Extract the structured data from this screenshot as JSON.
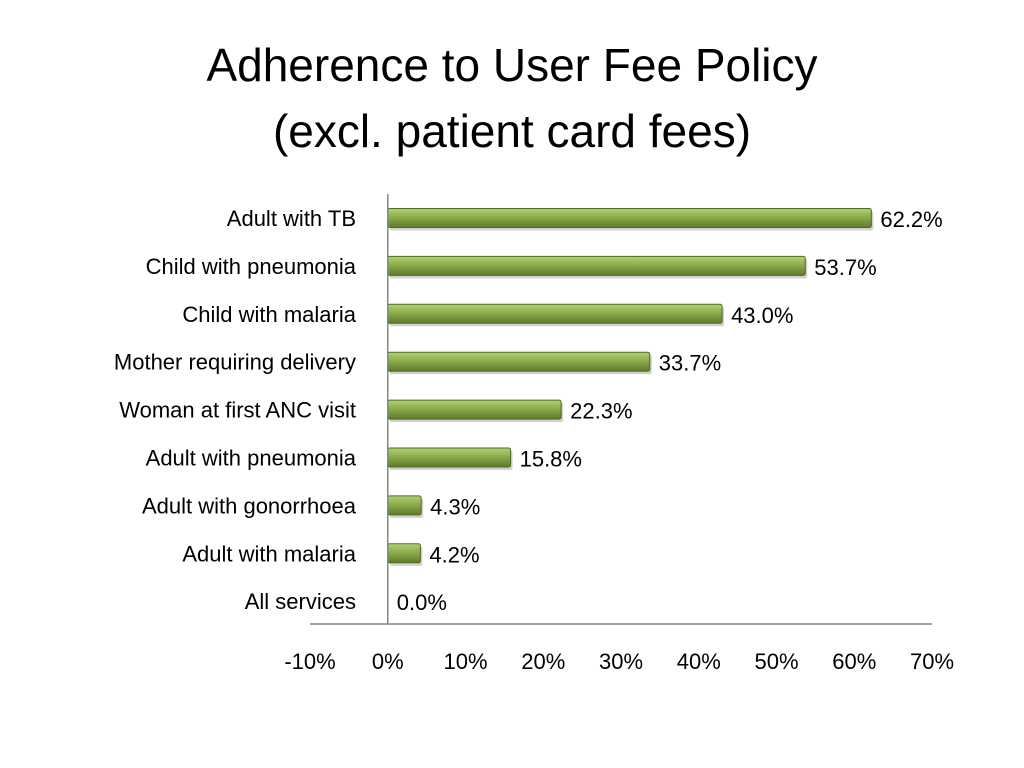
{
  "chart_data": {
    "type": "bar",
    "orientation": "horizontal",
    "title_line1": "Adherence to User Fee Policy",
    "title_line2": "(excl. patient card fees)",
    "categories": [
      "Adult with TB",
      "Child with pneumonia",
      "Child with malaria",
      "Mother requiring delivery",
      "Woman at first ANC visit",
      "Adult with pneumonia",
      "Adult with gonorrhoea",
      "Adult with malaria",
      "All services"
    ],
    "values": [
      62.2,
      53.7,
      43.0,
      33.7,
      22.3,
      15.8,
      4.3,
      4.2,
      0.0
    ],
    "value_labels": [
      "62.2%",
      "53.7%",
      "43.0%",
      "33.7%",
      "22.3%",
      "15.8%",
      "4.3%",
      "4.2%",
      "0.0%"
    ],
    "xlim": [
      -10,
      70
    ],
    "xticks": [
      -10,
      0,
      10,
      20,
      30,
      40,
      50,
      60,
      70
    ],
    "xtick_labels": [
      "-10%",
      "0%",
      "10%",
      "20%",
      "30%",
      "40%",
      "50%",
      "60%",
      "70%"
    ],
    "xlabel": "",
    "ylabel": "",
    "grid": false,
    "legend": "none",
    "colors": {
      "bar_fill": "#8cad4b",
      "bar_highlight": "#b4cf78",
      "bar_shadow": "#5e7a2c",
      "bar_stroke": "#4f6b22",
      "axis": "#868686"
    }
  }
}
